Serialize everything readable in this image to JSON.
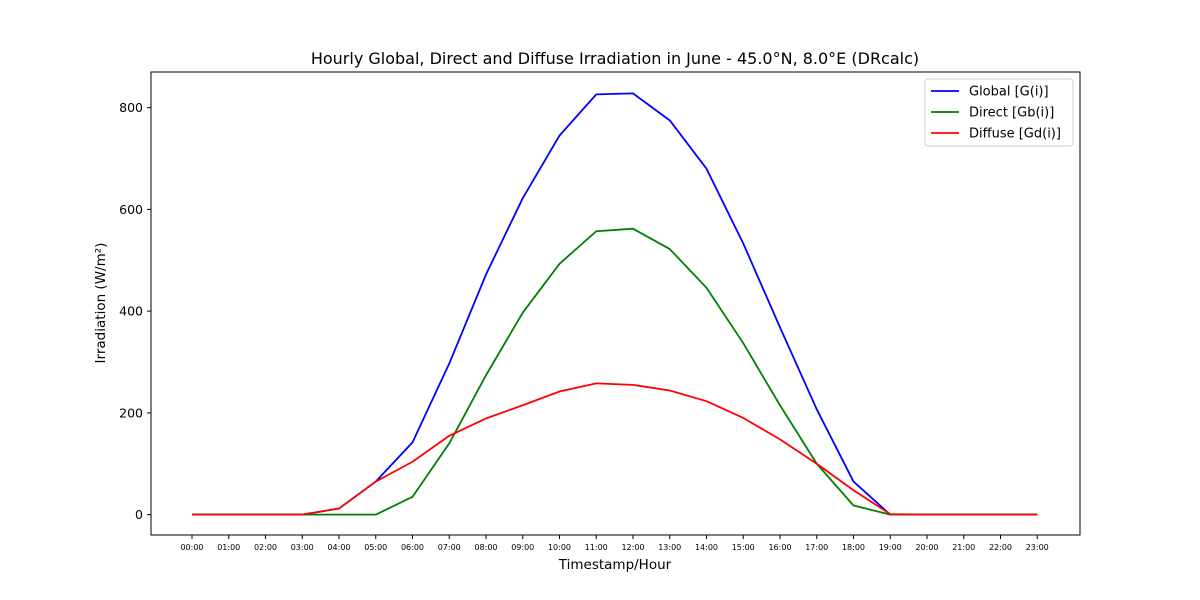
{
  "chart_data": {
    "type": "line",
    "title": "Hourly Global, Direct and Diffuse Irradiation in June - 45.0°N, 8.0°E (DRcalc)",
    "xlabel": "Timestamp/Hour",
    "ylabel": "Irradiation (W/m²)",
    "ylim": [
      -40,
      870
    ],
    "yticks": [
      0,
      200,
      400,
      600,
      800
    ],
    "ytick_labels": [
      "0",
      "200",
      "400",
      "600",
      "800"
    ],
    "grid": false,
    "legend_position": "top-right",
    "categories": [
      "00:00",
      "01:00",
      "02:00",
      "03:00",
      "04:00",
      "05:00",
      "06:00",
      "07:00",
      "08:00",
      "09:00",
      "10:00",
      "11:00",
      "12:00",
      "13:00",
      "14:00",
      "15:00",
      "16:00",
      "17:00",
      "18:00",
      "19:00",
      "20:00",
      "21:00",
      "22:00",
      "23:00"
    ],
    "series": [
      {
        "name": "Global [G(i)]",
        "color": "#0000ff",
        "values": [
          0,
          0,
          0,
          0,
          12,
          65,
          142,
          297,
          472,
          622,
          745,
          826,
          828,
          775,
          680,
          533,
          368,
          207,
          65,
          0,
          0,
          0,
          0,
          0
        ]
      },
      {
        "name": "Direct [Gb(i)]",
        "color": "#008000",
        "values": [
          0,
          0,
          0,
          0,
          0,
          0,
          35,
          140,
          274,
          397,
          493,
          557,
          562,
          522,
          446,
          337,
          215,
          100,
          18,
          0,
          0,
          0,
          0,
          0
        ]
      },
      {
        "name": "Diffuse [Gd(i)]",
        "color": "#ff0000",
        "values": [
          0,
          0,
          0,
          0,
          12,
          65,
          104,
          155,
          189,
          215,
          242,
          258,
          255,
          244,
          223,
          190,
          148,
          100,
          48,
          1,
          0,
          0,
          0,
          0
        ]
      }
    ]
  }
}
